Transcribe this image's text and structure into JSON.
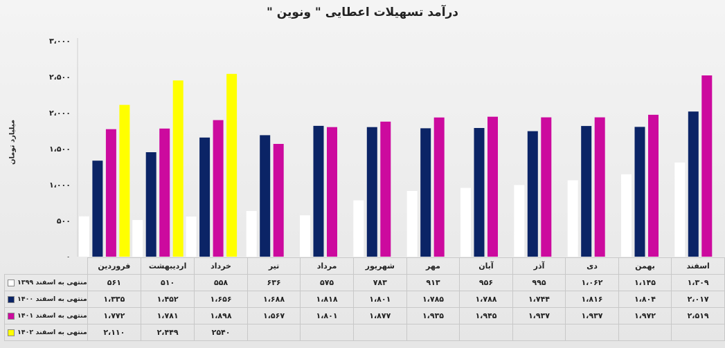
{
  "chart_data": {
    "type": "bar",
    "title": "درآمد تسهیلات اعطایی \" ونوین \"",
    "ylabel": "میلیارد تومان",
    "ylim": [
      0,
      3000
    ],
    "yticks": [
      "۳،۰۰۰",
      "۲،۵۰۰",
      "۲،۰۰۰",
      "۱،۵۰۰",
      "۱،۰۰۰",
      "۵۰۰",
      "۰"
    ],
    "ytick_values": [
      3000,
      2500,
      2000,
      1500,
      1000,
      500,
      0
    ],
    "categories": [
      "فروردین",
      "اردیبهشت",
      "خرداد",
      "تیر",
      "مرداد",
      "شهریور",
      "مهر",
      "آبان",
      "آذر",
      "دی",
      "بهمن",
      "اسفند"
    ],
    "grid": false,
    "legend": "table",
    "series": [
      {
        "name": "منتهی به اسفند ۱۳۹۹",
        "color": "#ffffff",
        "values": [
          561,
          510,
          558,
          636,
          575,
          783,
          913,
          956,
          995,
          1062,
          1145,
          1309
        ],
        "labels": [
          "۵۶۱",
          "۵۱۰",
          "۵۵۸",
          "۶۳۶",
          "۵۷۵",
          "۷۸۳",
          "۹۱۳",
          "۹۵۶",
          "۹۹۵",
          "۱،۰۶۲",
          "۱،۱۴۵",
          "۱،۳۰۹"
        ]
      },
      {
        "name": "منتهی به اسفند ۱۴۰۰",
        "color": "#0b2466",
        "values": [
          1335,
          1452,
          1656,
          1688,
          1818,
          1801,
          1785,
          1788,
          1744,
          1816,
          1804,
          2017
        ],
        "labels": [
          "۱،۳۳۵",
          "۱،۴۵۲",
          "۱،۶۵۶",
          "۱،۶۸۸",
          "۱،۸۱۸",
          "۱،۸۰۱",
          "۱،۷۸۵",
          "۱،۷۸۸",
          "۱،۷۴۴",
          "۱،۸۱۶",
          "۱،۸۰۴",
          "۲،۰۱۷"
        ]
      },
      {
        "name": "منتهی به اسفند ۱۴۰۱",
        "color": "#cc0a9e",
        "values": [
          1772,
          1781,
          1898,
          1567,
          1801,
          1877,
          1935,
          1945,
          1937,
          1937,
          1972,
          2519
        ],
        "labels": [
          "۱،۷۷۲",
          "۱،۷۸۱",
          "۱،۸۹۸",
          "۱،۵۶۷",
          "۱،۸۰۱",
          "۱،۸۷۷",
          "۱،۹۳۵",
          "۱،۹۴۵",
          "۱،۹۳۷",
          "۱،۹۳۷",
          "۱،۹۷۲",
          "۲،۵۱۹"
        ]
      },
      {
        "name": "منتهی به اسفند ۱۴۰۲",
        "color": "#ffff00",
        "values": [
          2110,
          2449,
          2540,
          null,
          null,
          null,
          null,
          null,
          null,
          null,
          null,
          null
        ],
        "labels": [
          "۲،۱۱۰",
          "۲،۴۴۹",
          "۲۵۴۰",
          "",
          "",
          "",
          "",
          "",
          "",
          "",
          "",
          ""
        ]
      }
    ]
  }
}
